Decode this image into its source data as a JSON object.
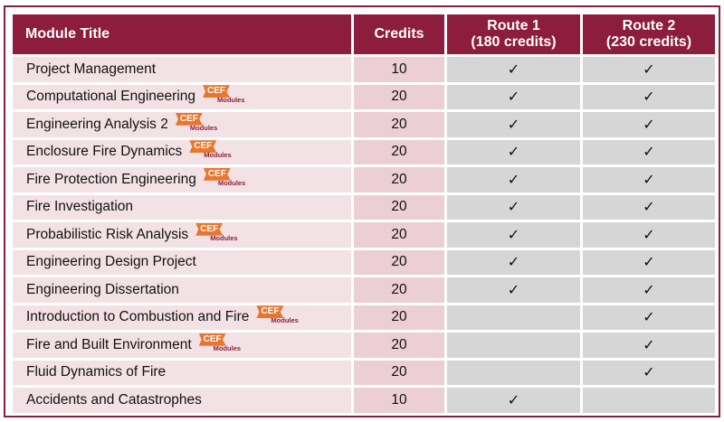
{
  "header": {
    "module_title": "Module Title",
    "credits": "Credits",
    "route1_line1": "Route 1",
    "route1_line2": "(180 credits)",
    "route2_line1": "Route 2",
    "route2_line2": "(230 credits)"
  },
  "badge": {
    "main": "CEF",
    "sub": "Modules",
    "color": "#e8762d"
  },
  "colors": {
    "accent": "#8c1d3c",
    "name_bg": "#f3e2e5",
    "credits_bg": "#ebcfd4",
    "route_bg": "#d6d6d6"
  },
  "check_glyph": "✓",
  "rows": [
    {
      "title": "Project Management",
      "credits": "10",
      "cef": false,
      "route1": true,
      "route2": true
    },
    {
      "title": "Computational Engineering",
      "credits": "20",
      "cef": true,
      "route1": true,
      "route2": true
    },
    {
      "title": "Engineering Analysis 2",
      "credits": "20",
      "cef": true,
      "route1": true,
      "route2": true
    },
    {
      "title": "Enclosure Fire Dynamics",
      "credits": "20",
      "cef": true,
      "route1": true,
      "route2": true
    },
    {
      "title": "Fire Protection Engineering",
      "credits": "20",
      "cef": true,
      "route1": true,
      "route2": true
    },
    {
      "title": "Fire Investigation",
      "credits": "20",
      "cef": false,
      "route1": true,
      "route2": true
    },
    {
      "title": "Probabilistic Risk Analysis",
      "credits": "20",
      "cef": true,
      "route1": true,
      "route2": true
    },
    {
      "title": "Engineering Design Project",
      "credits": "20",
      "cef": false,
      "route1": true,
      "route2": true
    },
    {
      "title": "Engineering Dissertation",
      "credits": "20",
      "cef": false,
      "route1": true,
      "route2": true
    },
    {
      "title": "Introduction to Combustion and Fire",
      "credits": "20",
      "cef": true,
      "route1": false,
      "route2": true
    },
    {
      "title": "Fire and Built Environment",
      "credits": "20",
      "cef": true,
      "route1": false,
      "route2": true
    },
    {
      "title": "Fluid Dynamics of Fire",
      "credits": "20",
      "cef": false,
      "route1": false,
      "route2": true
    },
    {
      "title": "Accidents and Catastrophes",
      "credits": "10",
      "cef": false,
      "route1": true,
      "route2": false
    }
  ]
}
